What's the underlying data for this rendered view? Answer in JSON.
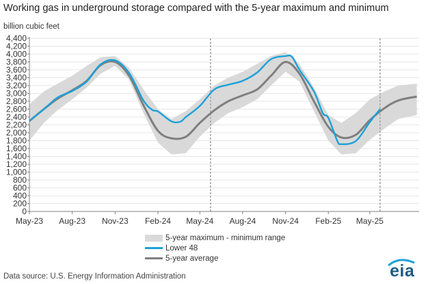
{
  "header": {
    "title": "Working gas in underground  storage compared with the 5-year maximum and minimum",
    "unit_label": "billion cubic feet"
  },
  "footer": {
    "source": "Data source:  U.S. Energy Information Administration",
    "logo_text": "eia"
  },
  "colors": {
    "band": "#d9d9d9",
    "lower48": "#1ba1d8",
    "avg": "#7f7f7f",
    "dashed_marker": "#a6a6a6"
  },
  "chart_data": {
    "type": "line",
    "ylabel": "billion cubic feet",
    "ylim": [
      0,
      4400
    ],
    "ytick_labels": [
      "0",
      "200",
      "400",
      "600",
      "800",
      "1,000",
      "1,200",
      "1,400",
      "1,600",
      "1,800",
      "2,000",
      "2,200",
      "2,400",
      "2,600",
      "2,800",
      "3,000",
      "3,200",
      "3,400",
      "3,600",
      "3,800",
      "4,000",
      "4,200",
      "4,400"
    ],
    "ytick_values": [
      0,
      200,
      400,
      600,
      800,
      1000,
      1200,
      1400,
      1600,
      1800,
      2000,
      2200,
      2400,
      2600,
      2800,
      3000,
      3200,
      3400,
      3600,
      3800,
      4000,
      4200,
      4400
    ],
    "xlim": [
      "2023-05-01",
      "2025-08-15"
    ],
    "x_ticks": [
      {
        "label": "May-23",
        "date": "2023-05-01"
      },
      {
        "label": "Aug-23",
        "date": "2023-08-01"
      },
      {
        "label": "Nov-23",
        "date": "2023-11-01"
      },
      {
        "label": "Feb-24",
        "date": "2024-02-01"
      },
      {
        "label": "May-24",
        "date": "2024-05-01"
      },
      {
        "label": "Aug-24",
        "date": "2024-08-01"
      },
      {
        "label": "Nov-24",
        "date": "2024-11-01"
      },
      {
        "label": "Feb-25",
        "date": "2025-02-01"
      },
      {
        "label": "May-25",
        "date": "2025-05-01"
      }
    ],
    "vertical_markers": [
      "2024-05-24",
      "2025-05-23"
    ],
    "legend": {
      "placement": "bottom-center",
      "entries": [
        {
          "key": "band",
          "label": "5-year maximum - minimum range"
        },
        {
          "key": "lower48",
          "label": "Lower 48"
        },
        {
          "key": "avg",
          "label": "5-year average"
        }
      ]
    },
    "series": [
      {
        "key": "band",
        "label": "5-year maximum - minimum range",
        "kind": "range",
        "x": [
          "2023-05-01",
          "2023-06-01",
          "2023-07-01",
          "2023-08-01",
          "2023-09-01",
          "2023-10-01",
          "2023-11-01",
          "2023-12-01",
          "2024-01-01",
          "2024-02-01",
          "2024-03-01",
          "2024-04-01",
          "2024-05-01",
          "2024-06-01",
          "2024-07-01",
          "2024-08-01",
          "2024-09-01",
          "2024-10-01",
          "2024-11-01",
          "2024-12-01",
          "2025-01-01",
          "2025-02-01",
          "2025-03-01",
          "2025-04-01",
          "2025-05-01",
          "2025-06-01",
          "2025-07-01",
          "2025-08-10"
        ],
        "low": [
          1800,
          2250,
          2580,
          2850,
          3150,
          3500,
          3700,
          3350,
          2500,
          1750,
          1450,
          1480,
          1900,
          2250,
          2500,
          2650,
          2850,
          3200,
          3550,
          3300,
          2550,
          1800,
          1450,
          1480,
          1820,
          2100,
          2350,
          2450
        ],
        "high": [
          2720,
          3050,
          3250,
          3450,
          3700,
          3920,
          3950,
          3650,
          3100,
          2600,
          2350,
          2550,
          2850,
          3200,
          3400,
          3550,
          3750,
          3950,
          4050,
          3750,
          3150,
          2450,
          2250,
          2500,
          2850,
          3050,
          3200,
          3250
        ]
      },
      {
        "key": "lower48",
        "label": "Lower 48",
        "kind": "line",
        "x": [
          "2023-05-01",
          "2023-06-01",
          "2023-07-01",
          "2023-08-01",
          "2023-09-01",
          "2023-10-01",
          "2023-11-01",
          "2023-12-01",
          "2024-01-01",
          "2024-01-20",
          "2024-02-01",
          "2024-03-01",
          "2024-03-20",
          "2024-04-01",
          "2024-05-01",
          "2024-06-01",
          "2024-07-01",
          "2024-08-01",
          "2024-09-01",
          "2024-10-01",
          "2024-11-01",
          "2024-11-15",
          "2024-12-01",
          "2025-01-01",
          "2025-01-20",
          "2025-02-01",
          "2025-02-20",
          "2025-03-01",
          "2025-04-01",
          "2025-05-01",
          "2025-05-23"
        ],
        "y": [
          2300,
          2600,
          2900,
          3060,
          3300,
          3740,
          3840,
          3520,
          2820,
          2580,
          2540,
          2290,
          2280,
          2400,
          2680,
          3100,
          3220,
          3320,
          3530,
          3870,
          3950,
          3930,
          3600,
          3050,
          2500,
          2380,
          1800,
          1710,
          1790,
          2270,
          2600
        ]
      },
      {
        "key": "avg",
        "label": "5-year average",
        "kind": "line",
        "x": [
          "2023-05-01",
          "2023-06-01",
          "2023-07-01",
          "2023-08-01",
          "2023-09-01",
          "2023-10-01",
          "2023-11-01",
          "2023-12-01",
          "2024-01-01",
          "2024-02-01",
          "2024-03-01",
          "2024-04-01",
          "2024-05-01",
          "2024-06-01",
          "2024-07-01",
          "2024-08-01",
          "2024-09-01",
          "2024-10-01",
          "2024-11-01",
          "2024-12-01",
          "2025-01-01",
          "2025-02-01",
          "2025-03-01",
          "2025-04-01",
          "2025-05-01",
          "2025-06-01",
          "2025-07-01",
          "2025-08-10"
        ],
        "y": [
          2300,
          2600,
          2870,
          3080,
          3320,
          3720,
          3800,
          3450,
          2700,
          2050,
          1860,
          1900,
          2250,
          2570,
          2800,
          2950,
          3100,
          3450,
          3800,
          3500,
          2800,
          2150,
          1880,
          1950,
          2320,
          2620,
          2820,
          2920
        ]
      }
    ]
  }
}
